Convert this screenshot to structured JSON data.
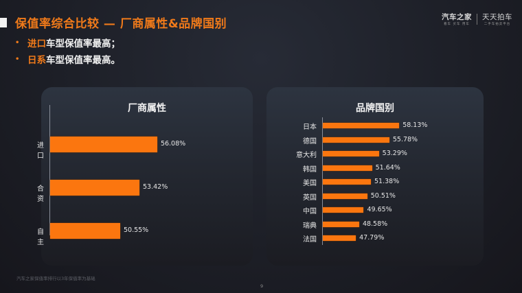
{
  "header": {
    "title": "保值率综合比较 — 厂商属性&品牌国别",
    "bullets": [
      {
        "highlight": "进口",
        "rest": "车型保值率最高；"
      },
      {
        "highlight": "日系",
        "rest": "车型保值率最高。"
      }
    ],
    "bullet_glyph": "•"
  },
  "logo": {
    "brand1": "汽车之家",
    "brand1_sub": "看车 买车 用车",
    "brand2": "天天拍车",
    "brand2_sub": "二手车拍卖平台"
  },
  "footer": {
    "note": "汽车之家保值率排行以3年保值率为基础",
    "page": "9"
  },
  "colors": {
    "accent": "#f07a1a",
    "bar": "#fb760f",
    "background": "#1d1f27"
  },
  "chart_data": [
    {
      "type": "bar",
      "orientation": "horizontal",
      "title": "厂商属性",
      "categories": [
        "进口",
        "合资",
        "自主"
      ],
      "values": [
        56.08,
        53.42,
        50.55
      ],
      "labels": [
        "56.08%",
        "53.42%",
        "50.55%"
      ],
      "xlabel": "",
      "ylabel": "",
      "grid": false,
      "legend": null
    },
    {
      "type": "bar",
      "orientation": "horizontal",
      "title": "品牌国别",
      "categories": [
        "日本",
        "德国",
        "意大利",
        "韩国",
        "美国",
        "英国",
        "中国",
        "瑞典",
        "法国"
      ],
      "values": [
        58.13,
        55.78,
        53.29,
        51.64,
        51.38,
        50.51,
        49.65,
        48.58,
        47.79
      ],
      "labels": [
        "58.13%",
        "55.78%",
        "53.29%",
        "51.64%",
        "51.38%",
        "50.51%",
        "49.65%",
        "48.58%",
        "47.79%"
      ],
      "xlabel": "",
      "ylabel": "",
      "grid": false,
      "legend": null
    }
  ]
}
